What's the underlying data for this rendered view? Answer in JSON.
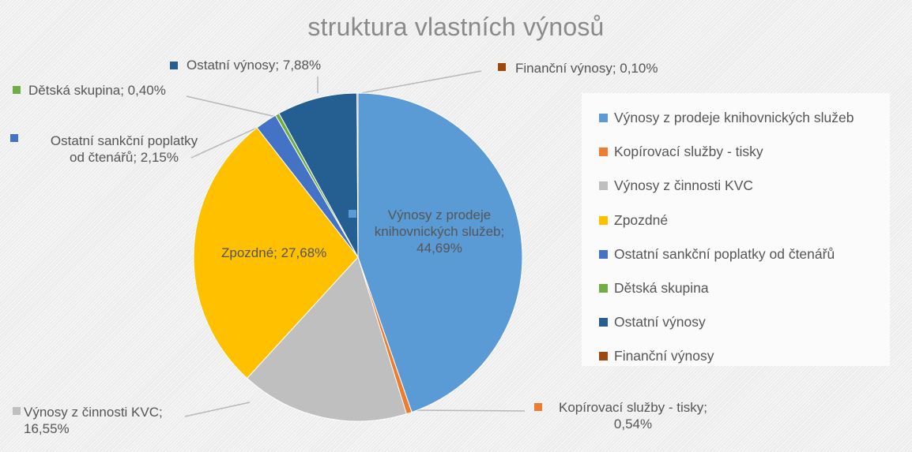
{
  "chart_data": {
    "type": "pie",
    "title": "struktura vlastních výnosů",
    "slices": [
      {
        "label": "Výnosy z prodeje knihovnických služeb",
        "value": 44.69,
        "value_text": "44,69%",
        "color": "#5b9bd5"
      },
      {
        "label": "Kopírovací služby - tisky",
        "value": 0.54,
        "value_text": "0,54%",
        "color": "#ed7d31"
      },
      {
        "label": "Výnosy z činnosti KVC",
        "value": 16.55,
        "value_text": "16,55%",
        "color": "#bfbfbf"
      },
      {
        "label": "Zpozdné",
        "value": 27.68,
        "value_text": "27,68%",
        "color": "#ffc000"
      },
      {
        "label": "Ostatní sankční poplatky od čtenářů",
        "value": 2.15,
        "value_text": "2,15%",
        "color": "#4472c4"
      },
      {
        "label": "Dětská skupina",
        "value": 0.4,
        "value_text": "0,40%",
        "color": "#70ad47"
      },
      {
        "label": "Ostatní výnosy",
        "value": 7.88,
        "value_text": "7,88%",
        "color": "#255e91"
      },
      {
        "label": "Finanční výnosy",
        "value": 0.1,
        "value_text": "0,10%",
        "color": "#9e480e"
      }
    ],
    "legend_position": "right"
  },
  "data_labels": [
    {
      "lines": [
        "Výnosy z prodeje",
        "knihovnických služeb;",
        "44,69%"
      ]
    },
    {
      "lines": [
        "Kopírovací služby - tisky;",
        "0,54%"
      ]
    },
    {
      "lines": [
        "Výnosy z činnosti KVC;",
        "16,55%"
      ]
    },
    {
      "lines": [
        "Zpozdné; 27,68%"
      ]
    },
    {
      "lines": [
        "Ostatní sankční poplatky",
        "od čtenářů; 2,15%"
      ]
    },
    {
      "lines": [
        "Dětská skupina; 0,40%"
      ]
    },
    {
      "lines": [
        "Ostatní výnosy; 7,88%"
      ]
    },
    {
      "lines": [
        "Finanční výnosy; 0,10%"
      ]
    }
  ]
}
